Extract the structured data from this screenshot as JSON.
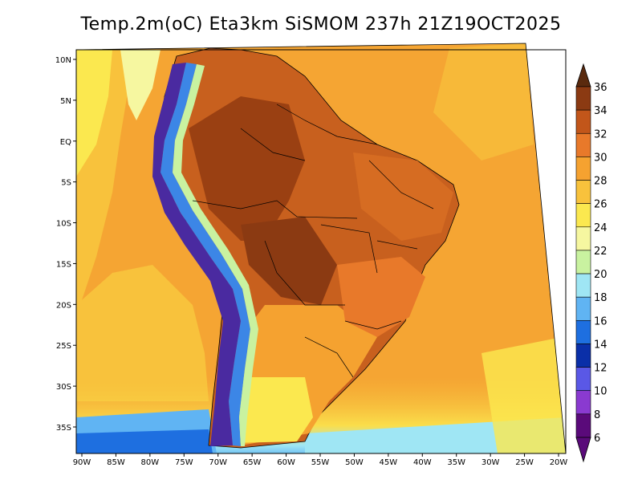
{
  "title": "Temp.2m(oC) Eta3km SiSMOM 237h 21Z19OCT2025",
  "lon_labels": [
    "90W",
    "85W",
    "80W",
    "75W",
    "70W",
    "65W",
    "60W",
    "55W",
    "50W",
    "45W",
    "40W",
    "35W",
    "30W",
    "25W",
    "20W"
  ],
  "lat_labels": [
    "10N",
    "5N",
    "EQ",
    "5S",
    "10S",
    "15S",
    "20S",
    "25S",
    "30S",
    "35S"
  ],
  "colorbar": {
    "labels": [
      "36",
      "34",
      "32",
      "30",
      "28",
      "26",
      "24",
      "22",
      "20",
      "18",
      "16",
      "14",
      "12",
      "10",
      "8",
      "6"
    ],
    "colors": [
      "#5a2a0e",
      "#8b3a12",
      "#c2561a",
      "#e8792a",
      "#f5a230",
      "#f8c23c",
      "#fbe84f",
      "#f6f7a0",
      "#c9f2a0",
      "#9fe6f4",
      "#60b4f3",
      "#1e6fe0",
      "#0a2fa8",
      "#5a58e6",
      "#8a3ad0",
      "#5a0a7a"
    ]
  },
  "map": {
    "ocean_color": "#f5a533",
    "land_warm": "#c8601e",
    "land_hot": "#9a4012",
    "andes_cold": "#4a2aa0",
    "mountain_blue": "#3c86e6"
  }
}
